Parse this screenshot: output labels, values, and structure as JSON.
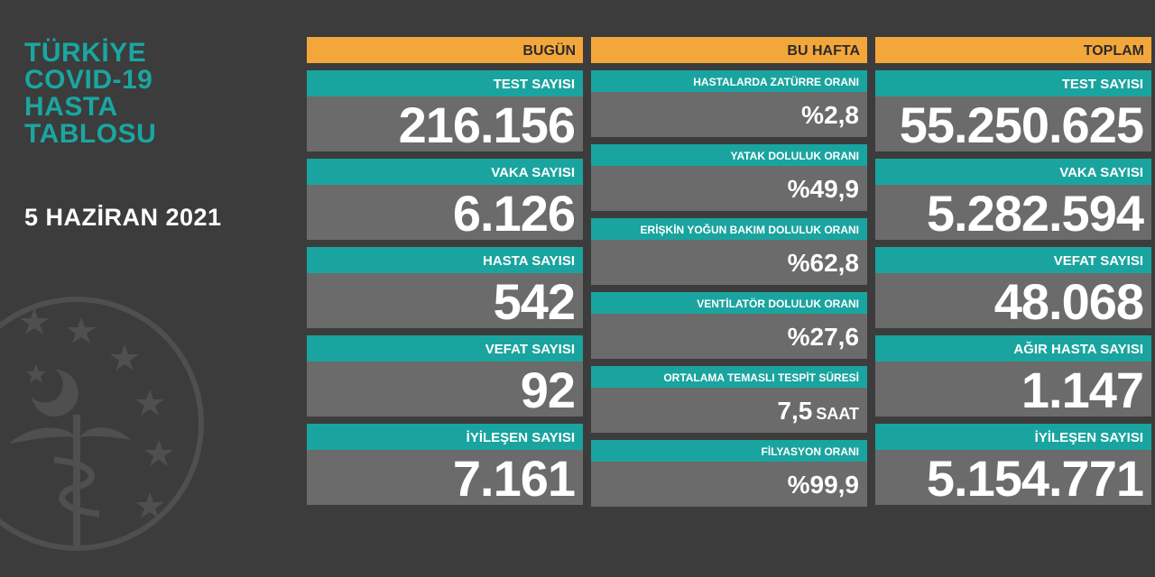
{
  "header": {
    "title_lines": [
      "TÜRKİYE",
      "COVID-19",
      "HASTA",
      "TABLOSU"
    ],
    "date": "5 HAZİRAN 2021"
  },
  "today": {
    "heading": "BUGÜN",
    "items": [
      {
        "label": "TEST SAYISI",
        "value": "216.156"
      },
      {
        "label": "VAKA SAYISI",
        "value": "6.126"
      },
      {
        "label": "HASTA SAYISI",
        "value": "542"
      },
      {
        "label": "VEFAT SAYISI",
        "value": "92"
      },
      {
        "label": "İYİLEŞEN SAYISI",
        "value": "7.161"
      }
    ]
  },
  "week": {
    "heading": "BU HAFTA",
    "items": [
      {
        "label": "HASTALARDA ZATÜRRE ORANI",
        "value": "%2,8"
      },
      {
        "label": "YATAK DOLULUK ORANI",
        "value": "%49,9"
      },
      {
        "label": "ERİŞKİN YOĞUN BAKIM DOLULUK ORANI",
        "value": "%62,8"
      },
      {
        "label": "VENTİLATÖR DOLULUK ORANI",
        "value": "%27,6"
      },
      {
        "label": "ORTALAMA TEMASLI TESPİT SÜRESİ",
        "value": "7,5",
        "unit": "SAAT"
      },
      {
        "label": "FİLYASYON ORANI",
        "value": "%99,9"
      }
    ]
  },
  "total": {
    "heading": "TOPLAM",
    "items": [
      {
        "label": "TEST SAYISI",
        "value": "55.250.625"
      },
      {
        "label": "VAKA SAYISI",
        "value": "5.282.594"
      },
      {
        "label": "VEFAT SAYISI",
        "value": "48.068"
      },
      {
        "label": "AĞIR HASTA SAYISI",
        "value": "1.147"
      },
      {
        "label": "İYİLEŞEN SAYISI",
        "value": "5.154.771"
      }
    ]
  },
  "colors": {
    "background": "#3c3c3c",
    "accent_teal": "#1aa49f",
    "header_orange": "#f3a73b",
    "value_gray": "#6b6b6b"
  },
  "icons": [
    "ministry-of-health-emblem-icon"
  ]
}
